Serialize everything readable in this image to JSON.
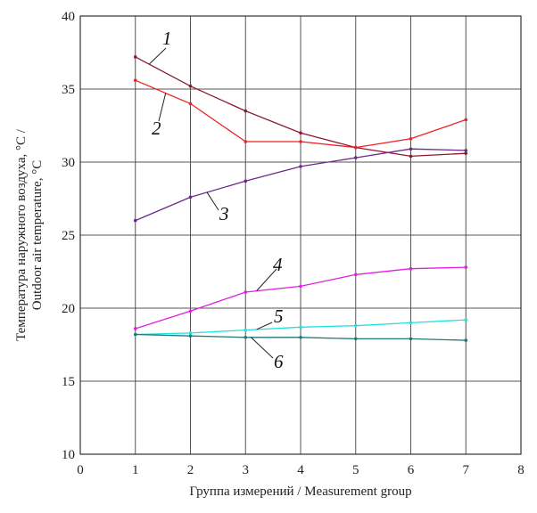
{
  "chart_data": {
    "type": "line",
    "xlabel": "Группа измерений / Measurement group",
    "ylabel_line1": "Температура наружного воздуха, °C /",
    "ylabel_line2": "Outdoor air temperature, °C",
    "xlim": [
      0,
      8
    ],
    "ylim": [
      10,
      40
    ],
    "x_ticks": [
      0,
      1,
      2,
      3,
      4,
      5,
      6,
      7,
      8
    ],
    "y_ticks": [
      10,
      15,
      20,
      25,
      30,
      35,
      40
    ],
    "grid": true,
    "x": [
      1,
      2,
      3,
      4,
      5,
      6,
      7
    ],
    "series": [
      {
        "name": "1",
        "color": "#8b1a2e",
        "values": [
          37.2,
          35.2,
          33.5,
          32.0,
          31.0,
          30.4,
          30.6
        ]
      },
      {
        "name": "2",
        "color": "#ee2222",
        "values": [
          35.6,
          34.0,
          31.4,
          31.4,
          31.0,
          31.6,
          32.9
        ]
      },
      {
        "name": "3",
        "color": "#6a2a8a",
        "values": [
          26.0,
          27.6,
          28.7,
          29.7,
          30.3,
          30.9,
          30.8
        ]
      },
      {
        "name": "4",
        "color": "#e020e0",
        "values": [
          18.6,
          19.8,
          21.1,
          21.5,
          22.3,
          22.7,
          22.8
        ]
      },
      {
        "name": "5",
        "color": "#22e0e0",
        "values": [
          18.2,
          18.3,
          18.5,
          18.7,
          18.8,
          19.0,
          19.2
        ]
      },
      {
        "name": "6",
        "color": "#1f7a7a",
        "values": [
          18.2,
          18.1,
          18.0,
          18.0,
          17.9,
          17.9,
          17.8
        ]
      }
    ]
  }
}
